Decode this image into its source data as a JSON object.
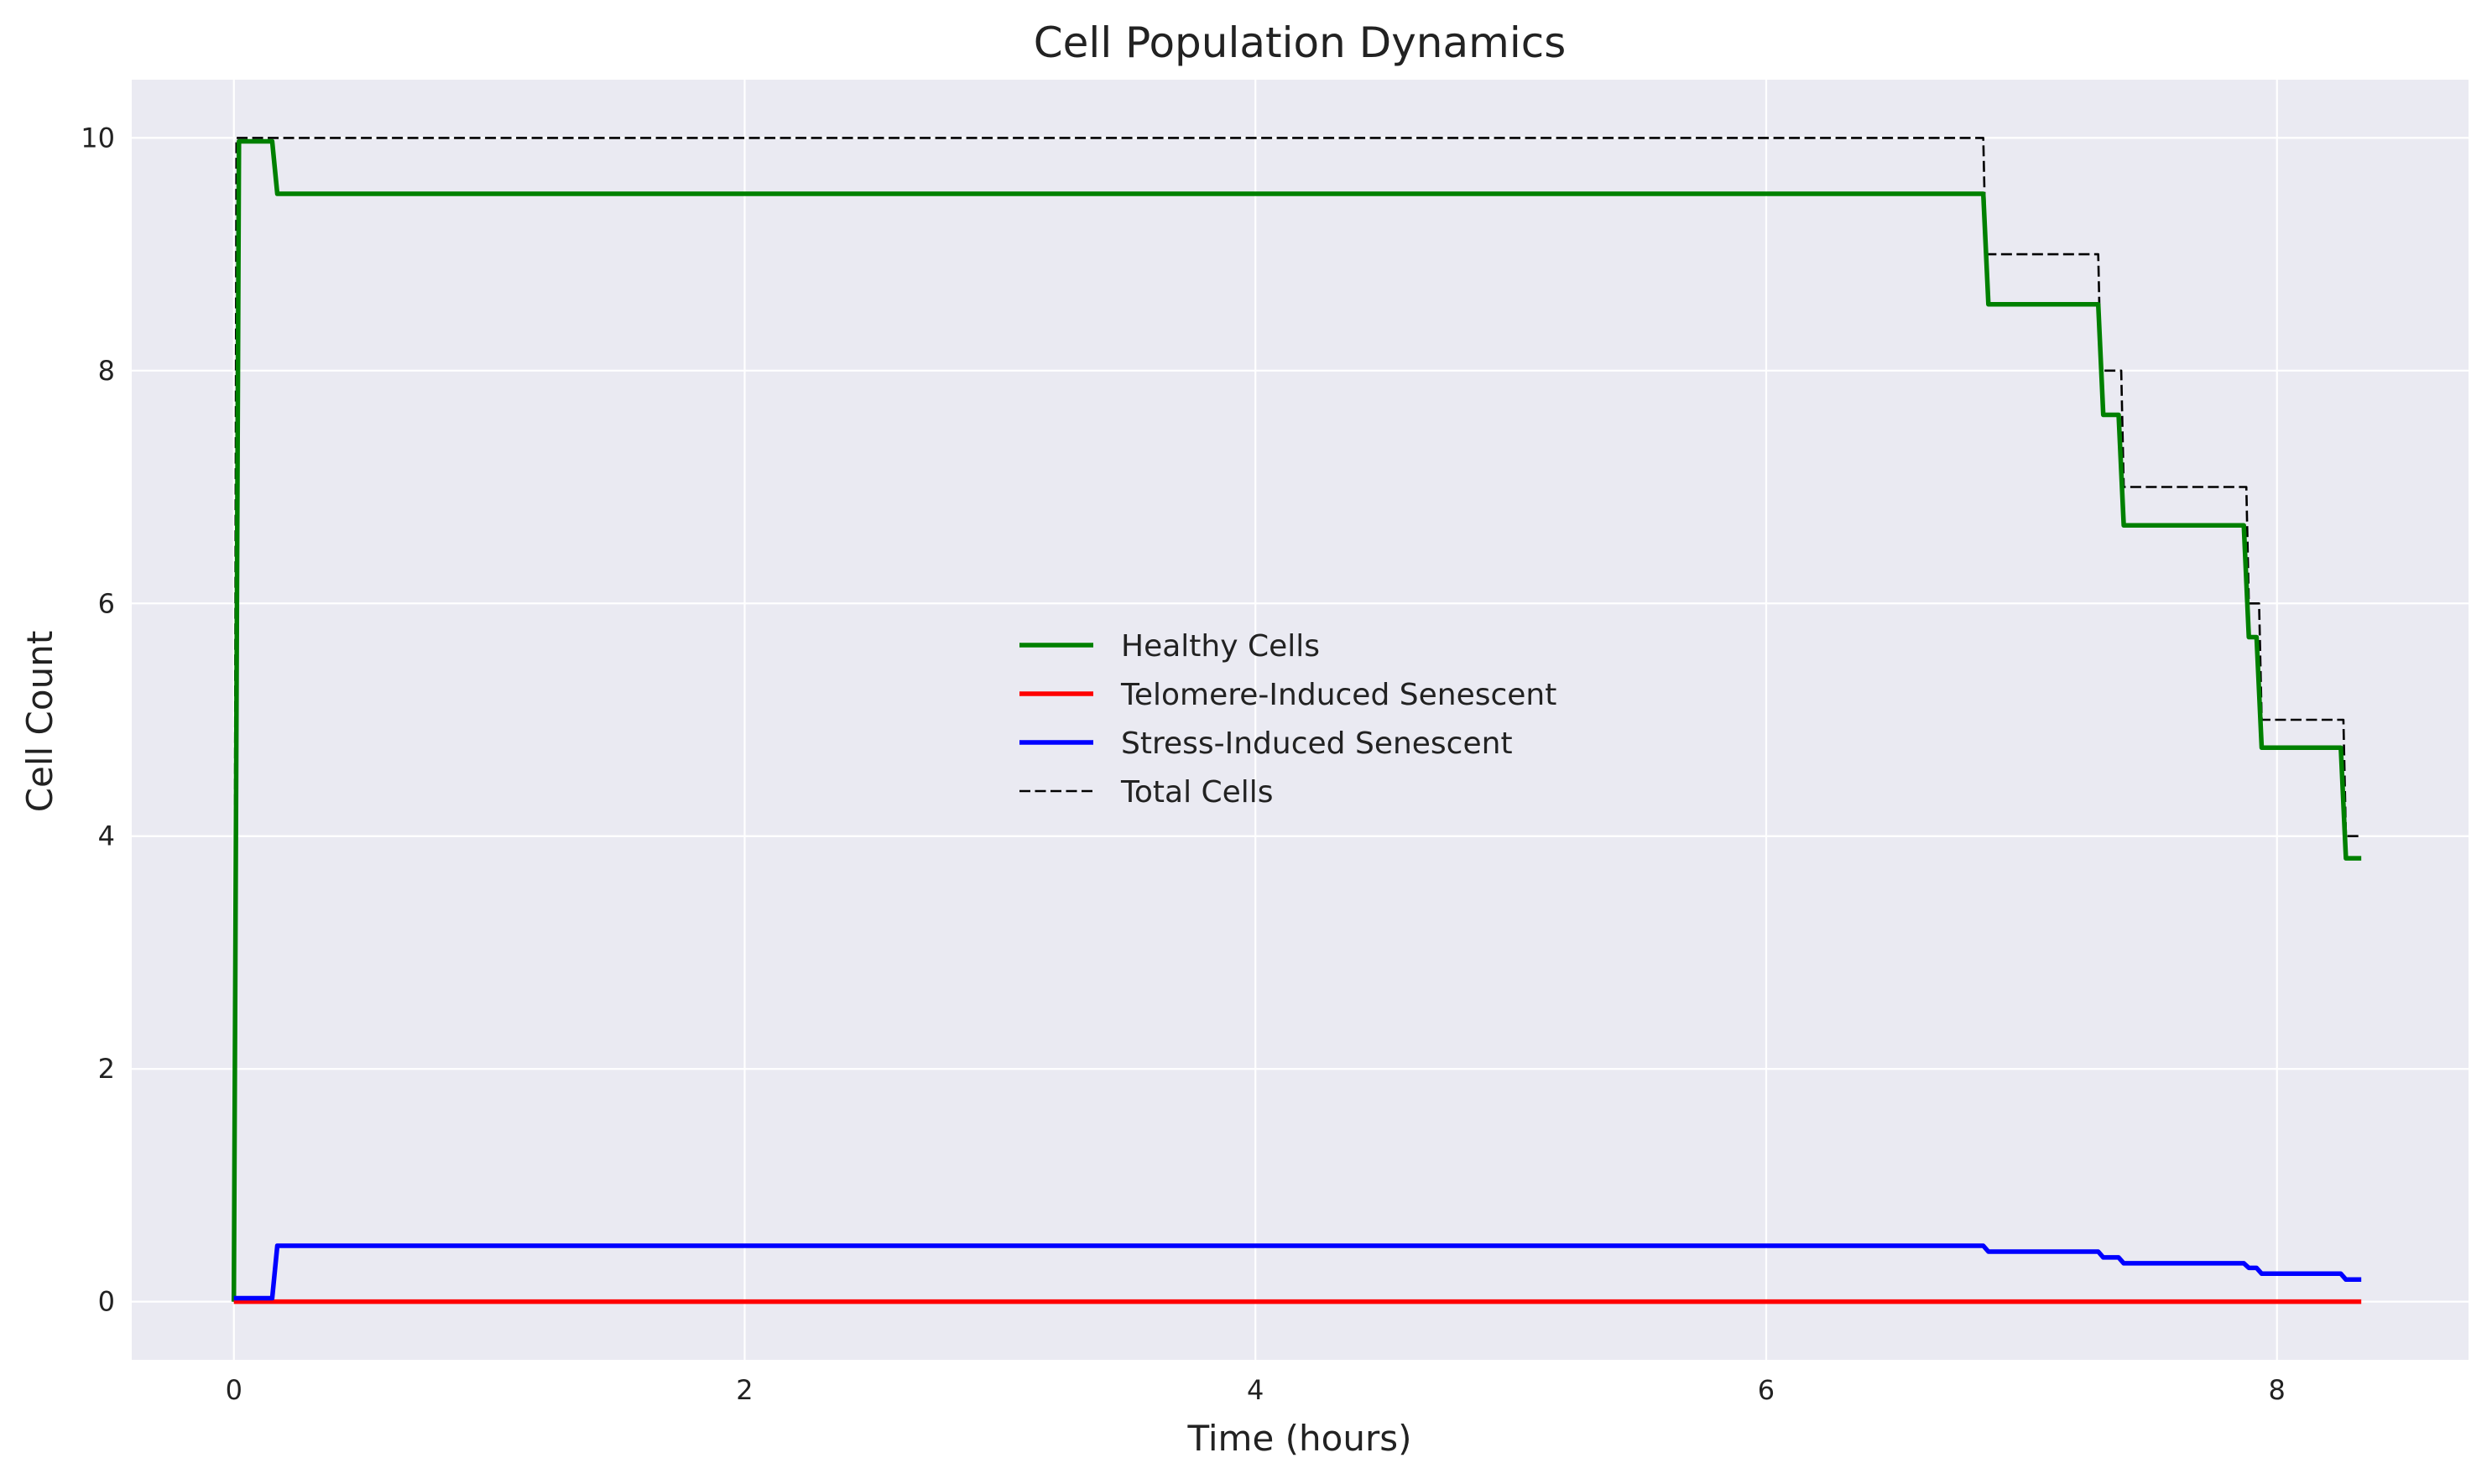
{
  "chart_data": {
    "type": "line",
    "title": "Cell Population Dynamics",
    "xlabel": "Time (hours)",
    "ylabel": "Cell Count",
    "xlim": [
      -0.4,
      8.75
    ],
    "ylim": [
      -0.5,
      10.5
    ],
    "xticks": [
      0,
      2,
      4,
      6,
      8
    ],
    "yticks": [
      0,
      2,
      4,
      6,
      8,
      10
    ],
    "grid": true,
    "legend_position": "center",
    "series": [
      {
        "name": "Healthy Cells",
        "color": "#008000",
        "style": "solid",
        "x": [
          0,
          0.02,
          0.15,
          0.17,
          6.85,
          6.87,
          7.3,
          7.32,
          7.38,
          7.4,
          7.87,
          7.89,
          7.92,
          7.94,
          8.25,
          8.27,
          8.33
        ],
        "y": [
          0,
          9.97,
          9.97,
          9.52,
          9.52,
          8.57,
          8.57,
          7.62,
          7.62,
          6.67,
          6.67,
          5.71,
          5.71,
          4.76,
          4.76,
          3.81,
          3.81
        ]
      },
      {
        "name": "Telomere-Induced Senescent",
        "color": "#ff0000",
        "style": "solid",
        "x": [
          0,
          8.33
        ],
        "y": [
          0,
          0
        ]
      },
      {
        "name": "Stress-Induced Senescent",
        "color": "#0000ff",
        "style": "solid",
        "x": [
          0,
          0.15,
          0.17,
          6.85,
          6.87,
          7.3,
          7.32,
          7.38,
          7.4,
          7.87,
          7.89,
          7.92,
          7.94,
          8.25,
          8.27,
          8.33
        ],
        "y": [
          0.03,
          0.03,
          0.48,
          0.48,
          0.43,
          0.43,
          0.38,
          0.38,
          0.33,
          0.33,
          0.29,
          0.29,
          0.24,
          0.24,
          0.19,
          0.19
        ]
      },
      {
        "name": "Total Cells",
        "color": "#000000",
        "style": "dashed",
        "x": [
          0,
          0.01,
          6.85,
          6.86,
          7.3,
          7.31,
          7.39,
          7.4,
          7.88,
          7.89,
          7.93,
          7.94,
          8.26,
          8.27,
          8.33
        ],
        "y": [
          0,
          10,
          10,
          9,
          9,
          8,
          8,
          7,
          7,
          6,
          6,
          5,
          5,
          4,
          4
        ]
      }
    ]
  }
}
